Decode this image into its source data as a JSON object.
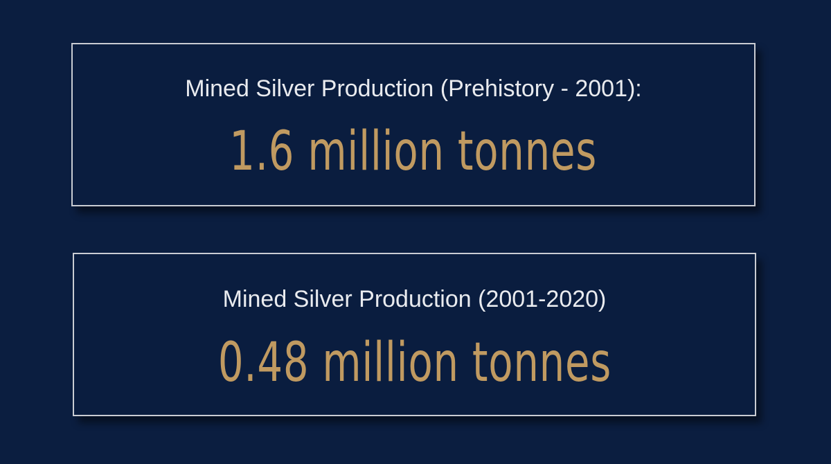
{
  "background_color": "#0b1e40",
  "accent_color": "#c09a61",
  "stats": [
    {
      "label": "Mined Silver Production (Prehistory - 2001):",
      "value": "1.6 million tonnes"
    },
    {
      "label": "Mined Silver Production (2001-2020)",
      "value": "0.48 million tonnes"
    }
  ]
}
